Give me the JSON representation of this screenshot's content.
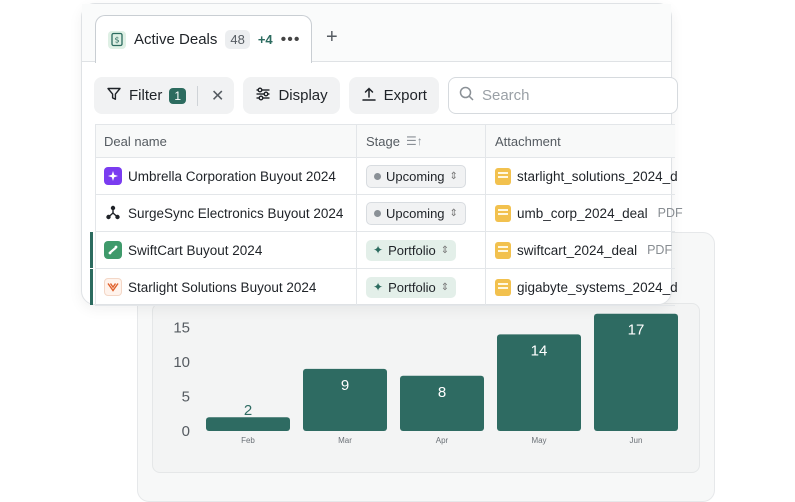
{
  "tab": {
    "label": "Active Deals",
    "count": "48",
    "extra": "+4",
    "more": "•••",
    "add": "+"
  },
  "toolbar": {
    "filter_label": "Filter",
    "filter_count": "1",
    "clear": "✕",
    "display_label": "Display",
    "export_label": "Export",
    "search_placeholder": "Search"
  },
  "table": {
    "columns": [
      "Deal name",
      "Stage",
      "Attachment"
    ],
    "stage_sort_icon": "☰↑",
    "rows": [
      {
        "name": "Umbrella Corporation Buyout 2024",
        "stage": "Upcoming",
        "attachment": "starlight_solutions_2024_d",
        "file_type": "",
        "logo": "umbrella-logo-icon",
        "selected": false
      },
      {
        "name": "SurgeSync Electronics Buyout 2024",
        "stage": "Upcoming",
        "attachment": "umb_corp_2024_deal",
        "file_type": "PDF",
        "logo": "surgesync-logo-icon",
        "selected": false
      },
      {
        "name": "SwiftCart Buyout 2024",
        "stage": "Portfolio",
        "attachment": "swiftcart_2024_deal",
        "file_type": "PDF",
        "logo": "swiftcart-logo-icon",
        "selected": true
      },
      {
        "name": "Starlight Solutions Buyout 2024",
        "stage": "Portfolio",
        "attachment": "gigabyte_systems_2024_d",
        "file_type": "",
        "logo": "starlight-logo-icon",
        "selected": true
      }
    ]
  },
  "colors": {
    "accent": "#2c6b5f",
    "bar": "#2e6b62"
  },
  "chart_data": {
    "type": "bar",
    "categories": [
      "Feb",
      "Mar",
      "Apr",
      "May",
      "Jun"
    ],
    "values": [
      2,
      9,
      8,
      14,
      17
    ],
    "ylim": [
      0,
      17
    ],
    "yticks": [
      0,
      5,
      10,
      15
    ],
    "grid": false,
    "title": "",
    "xlabel": "",
    "ylabel": ""
  }
}
